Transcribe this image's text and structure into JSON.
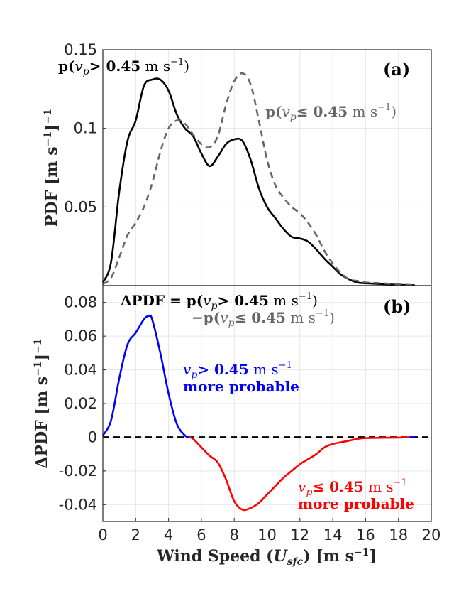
{
  "chart_data": [
    {
      "type": "line",
      "panel_label": "(a)",
      "ylabel": "PDF [m s⁻¹]⁻¹",
      "xlim": [
        0,
        20
      ],
      "ylim": [
        0,
        0.15
      ],
      "yticks": [
        0.05,
        0.1,
        0.15
      ],
      "ytick_labels": [
        "0.05",
        "0.1",
        "0.15"
      ],
      "grid": true,
      "series": [
        {
          "name": "p(v_p > 0.45 m s⁻¹)",
          "color": "#000000",
          "style": "solid",
          "x": [
            0,
            0.5,
            1.0,
            1.5,
            2.0,
            2.5,
            3.0,
            3.5,
            4.0,
            4.5,
            5.0,
            5.5,
            6.0,
            6.5,
            7.0,
            7.5,
            8.0,
            8.5,
            9.0,
            9.5,
            10.0,
            10.5,
            11.0,
            11.5,
            12.0,
            12.5,
            13.0,
            13.5,
            14.0,
            14.5,
            15.0,
            15.5,
            16.0,
            17.0,
            18.0,
            19.0
          ],
          "y": [
            0.002,
            0.015,
            0.06,
            0.092,
            0.105,
            0.127,
            0.131,
            0.131,
            0.124,
            0.109,
            0.1,
            0.095,
            0.084,
            0.076,
            0.082,
            0.09,
            0.093,
            0.092,
            0.08,
            0.062,
            0.05,
            0.043,
            0.036,
            0.031,
            0.03,
            0.028,
            0.023,
            0.017,
            0.012,
            0.007,
            0.004,
            0.002,
            0.0015,
            0.001,
            0.0005,
            0.0002
          ]
        },
        {
          "name": "p(v_p ≤ 0.45 m s⁻¹)",
          "color": "#666666",
          "style": "dashed",
          "x": [
            0,
            0.5,
            1.0,
            1.5,
            2.0,
            2.5,
            3.0,
            3.5,
            4.0,
            4.5,
            5.0,
            5.5,
            6.0,
            6.5,
            7.0,
            7.5,
            8.0,
            8.5,
            9.0,
            9.5,
            10.0,
            10.5,
            11.0,
            11.5,
            12.0,
            12.5,
            13.0,
            13.5,
            14.0,
            14.5,
            15.0,
            15.5,
            16.0,
            17.0,
            18.0,
            19.0
          ],
          "y": [
            0.001,
            0.005,
            0.018,
            0.032,
            0.04,
            0.05,
            0.065,
            0.085,
            0.1,
            0.105,
            0.103,
            0.096,
            0.09,
            0.088,
            0.095,
            0.115,
            0.13,
            0.135,
            0.128,
            0.105,
            0.08,
            0.064,
            0.056,
            0.05,
            0.046,
            0.04,
            0.032,
            0.022,
            0.014,
            0.008,
            0.004,
            0.003,
            0.002,
            0.0015,
            0.0008,
            0.0003
          ]
        }
      ],
      "annotations": {
        "p_gt": "p(v_p > 0.45 m s⁻¹)",
        "p_le": "p(v_p ≤ 0.45 m s⁻¹)"
      }
    },
    {
      "type": "line",
      "panel_label": "(b)",
      "ylabel": "ΔPDF [m s⁻¹]⁻¹",
      "xlabel": "Wind Speed (U_sfc) [m s⁻¹]",
      "xlim": [
        0,
        20
      ],
      "ylim": [
        -0.05,
        0.09
      ],
      "xticks": [
        0,
        2,
        4,
        6,
        8,
        10,
        12,
        14,
        16,
        18,
        20
      ],
      "xtick_labels": [
        "0",
        "2",
        "4",
        "6",
        "8",
        "10",
        "12",
        "14",
        "16",
        "18",
        "20"
      ],
      "yticks": [
        -0.04,
        -0.02,
        0,
        0.02,
        0.04,
        0.06,
        0.08
      ],
      "ytick_labels": [
        "-0.04",
        "-0.02",
        "0",
        "0.02",
        "0.04",
        "0.06",
        "0.08"
      ],
      "grid": true,
      "zero_line": {
        "color": "#000000",
        "style": "dashed"
      },
      "series": [
        {
          "name": "ΔPDF",
          "color_positive": "#0000ff",
          "color_negative": "#ff0000",
          "x": [
            0,
            0.5,
            1.0,
            1.5,
            2.0,
            2.5,
            2.8,
            3.0,
            3.5,
            4.0,
            4.5,
            5.0,
            5.5,
            6.0,
            6.5,
            7.0,
            7.5,
            8.0,
            8.5,
            9.0,
            9.5,
            10.0,
            10.5,
            11.0,
            11.5,
            12.0,
            12.5,
            13.0,
            13.5,
            14.0,
            14.5,
            15.0,
            15.5,
            16.0,
            16.5,
            17.0,
            18.0,
            19.0
          ],
          "y": [
            0.001,
            0.01,
            0.035,
            0.055,
            0.062,
            0.07,
            0.072,
            0.07,
            0.05,
            0.026,
            0.008,
            0.001,
            -0.001,
            -0.006,
            -0.011,
            -0.015,
            -0.025,
            -0.038,
            -0.043,
            -0.042,
            -0.039,
            -0.034,
            -0.029,
            -0.024,
            -0.02,
            -0.016,
            -0.013,
            -0.01,
            -0.006,
            -0.004,
            -0.003,
            -0.002,
            -0.001,
            -0.0005,
            -0.0004,
            -0.0003,
            -0.0002,
            0.0001
          ]
        }
      ],
      "annotations": {
        "delta_line1": "ΔPDF = p(v_p > 0.45 m s⁻¹)",
        "delta_line2": "−p(v_p ≤ 0.45 m s⁻¹)",
        "blue_line1": "v_p > 0.45 m s⁻¹",
        "blue_line2": "more probable",
        "red_line1": "v_p ≤ 0.45 m s⁻¹",
        "red_line2": "more probable"
      }
    }
  ]
}
